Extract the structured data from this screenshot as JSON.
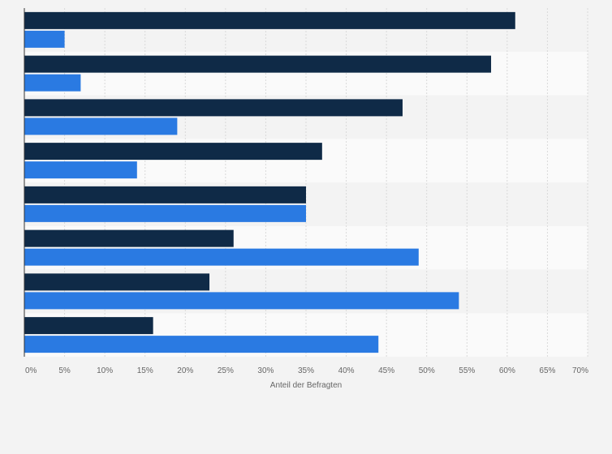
{
  "chart_data": {
    "type": "bar",
    "orientation": "horizontal",
    "categories": [
      "",
      "",
      "",
      "",
      "",
      "",
      "",
      ""
    ],
    "series": [
      {
        "values": [
          61,
          58,
          47,
          37,
          35,
          26,
          23,
          16
        ],
        "color": "#0f2a47"
      },
      {
        "values": [
          5,
          7,
          19,
          14,
          35,
          49,
          54,
          44
        ],
        "color": "#2a7ae2"
      }
    ],
    "xlim": [
      0,
      70
    ],
    "x_ticks": [
      "0%",
      "5%",
      "10%",
      "15%",
      "20%",
      "25%",
      "30%",
      "35%",
      "40%",
      "45%",
      "50%",
      "55%",
      "60%",
      "65%",
      "70%"
    ],
    "xlabel": "Anteil der Befragten",
    "grid": true,
    "legend": "none"
  }
}
